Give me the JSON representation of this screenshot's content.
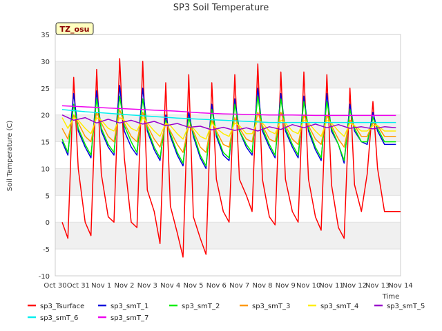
{
  "chart_data": {
    "type": "line",
    "title": "SP3 Soil Temperature",
    "xlabel": "Time",
    "ylabel": "Soil Temperature (C)",
    "ylim": [
      -10,
      35
    ],
    "xlim": [
      0,
      15
    ],
    "yticks": [
      -10,
      -5,
      0,
      5,
      10,
      15,
      20,
      25,
      30,
      35
    ],
    "xtick_labels": [
      "Oct 30",
      "Oct 31",
      "Nov 1",
      "Nov 2",
      "Nov 3",
      "Nov 4",
      "Nov 5",
      "Nov 6",
      "Nov 7",
      "Nov 8",
      "Nov 9",
      "Nov 10",
      "Nov 11",
      "Nov 12",
      "Nov 13",
      "Nov 14"
    ],
    "badge": "TZ_osu",
    "grid": "horizontal bands",
    "legend_position": "bottom",
    "series": [
      {
        "name": "sp3_Tsurface",
        "color": "#ff0000",
        "x": [
          0.3,
          0.55,
          0.8,
          1.0,
          1.3,
          1.55,
          1.8,
          2.0,
          2.3,
          2.55,
          2.8,
          3.0,
          3.3,
          3.55,
          3.8,
          4.0,
          4.3,
          4.55,
          4.8,
          5.0,
          5.3,
          5.55,
          5.8,
          6.0,
          6.3,
          6.55,
          6.8,
          7.0,
          7.3,
          7.55,
          7.8,
          8.0,
          8.3,
          8.55,
          8.8,
          9.0,
          9.3,
          9.55,
          9.8,
          10.0,
          10.3,
          10.55,
          10.8,
          11.0,
          11.3,
          11.55,
          11.8,
          12.0,
          12.3,
          12.55,
          12.8,
          13.0,
          13.3,
          13.55,
          13.8,
          14.0,
          14.3,
          14.55,
          14.8,
          15.0
        ],
        "values": [
          0,
          -3,
          27,
          10,
          0,
          -2.5,
          28.5,
          9,
          1,
          0,
          30.5,
          12,
          0,
          -1,
          30,
          6,
          2,
          -4,
          26,
          3,
          -2,
          -6.5,
          27.5,
          1,
          -3,
          -6,
          26,
          8,
          2,
          0,
          27.5,
          8,
          5,
          2,
          29.5,
          8,
          1,
          -0.5,
          28,
          8,
          2,
          0,
          28,
          8,
          1,
          -1.5,
          27.5,
          7,
          -1,
          -3,
          25,
          7,
          2,
          9,
          22.5,
          10,
          2,
          2,
          2,
          2
        ]
      },
      {
        "name": "sp3_smT_1",
        "color": "#0000dd",
        "x": [
          0.3,
          0.55,
          0.8,
          1.0,
          1.3,
          1.55,
          1.8,
          2.0,
          2.3,
          2.55,
          2.8,
          3.0,
          3.3,
          3.55,
          3.8,
          4.0,
          4.3,
          4.55,
          4.8,
          5.0,
          5.3,
          5.55,
          5.8,
          6.0,
          6.3,
          6.55,
          6.8,
          7.0,
          7.3,
          7.55,
          7.8,
          8.0,
          8.3,
          8.55,
          8.8,
          9.0,
          9.3,
          9.55,
          9.8,
          10.0,
          10.3,
          10.55,
          10.8,
          11.0,
          11.3,
          11.55,
          11.8,
          12.0,
          12.3,
          12.55,
          12.8,
          13.0,
          13.3,
          13.55,
          13.8,
          14.0,
          14.3,
          14.55,
          14.8
        ],
        "values": [
          15,
          12.5,
          24,
          17,
          14,
          12,
          24.5,
          17,
          14,
          12.5,
          25.5,
          17,
          14,
          12.5,
          25,
          17,
          13.5,
          11.5,
          20,
          16,
          12.5,
          10.5,
          20.5,
          16,
          12,
          10,
          22,
          16,
          12.5,
          11.5,
          23,
          17,
          14,
          12.5,
          25,
          17,
          14,
          12,
          24,
          17,
          14,
          12,
          23.5,
          17,
          13.5,
          11.5,
          24,
          17,
          14.5,
          11,
          22,
          17,
          15,
          14.5,
          20.5,
          17,
          14.5,
          14.5,
          14.5
        ]
      },
      {
        "name": "sp3_smT_2",
        "color": "#00ee00",
        "x": [
          0.3,
          0.55,
          0.8,
          1.0,
          1.3,
          1.55,
          1.8,
          2.0,
          2.3,
          2.55,
          2.8,
          3.0,
          3.3,
          3.55,
          3.8,
          4.0,
          4.3,
          4.55,
          4.8,
          5.0,
          5.3,
          5.55,
          5.8,
          6.0,
          6.3,
          6.55,
          6.8,
          7.0,
          7.3,
          7.55,
          7.8,
          8.0,
          8.3,
          8.55,
          8.8,
          9.0,
          9.3,
          9.55,
          9.8,
          10.0,
          10.3,
          10.55,
          10.8,
          11.0,
          11.3,
          11.55,
          11.8,
          12.0,
          12.3,
          12.55,
          12.8,
          13.0,
          13.3,
          13.55,
          13.8,
          14.0,
          14.3,
          14.55,
          14.8
        ],
        "values": [
          15.5,
          13,
          22,
          17.5,
          14.5,
          12.5,
          23,
          17.5,
          14.5,
          13,
          23.5,
          18,
          15,
          13,
          23,
          17.5,
          14,
          12,
          19,
          16.5,
          13,
          11,
          19.5,
          16.5,
          12.5,
          10.5,
          21,
          16.5,
          13,
          12,
          22,
          17,
          14.5,
          13,
          23.5,
          17.5,
          14.5,
          12.5,
          23,
          17.5,
          14.5,
          12.5,
          22.5,
          17.5,
          14,
          12,
          22.5,
          17.5,
          14.5,
          11.5,
          21,
          17.5,
          15,
          15,
          19.5,
          17.5,
          15,
          15,
          15
        ]
      },
      {
        "name": "sp3_smT_3",
        "color": "#ff9900",
        "x": [
          0.3,
          0.55,
          0.8,
          1.0,
          1.3,
          1.55,
          1.8,
          2.0,
          2.3,
          2.55,
          2.8,
          3.0,
          3.3,
          3.55,
          3.8,
          4.0,
          4.3,
          4.55,
          4.8,
          5.0,
          5.3,
          5.55,
          5.8,
          6.0,
          6.3,
          6.55,
          6.8,
          7.0,
          7.3,
          7.55,
          7.8,
          8.0,
          8.3,
          8.55,
          8.8,
          9.0,
          9.3,
          9.55,
          9.8,
          10.0,
          10.3,
          10.55,
          10.8,
          11.0,
          11.3,
          11.55,
          11.8,
          12.0,
          12.3,
          12.55,
          12.8,
          13.0,
          13.3,
          13.55,
          13.8,
          14.0,
          14.3,
          14.55,
          14.8
        ],
        "values": [
          17.5,
          15.5,
          20,
          18.5,
          16,
          15,
          20.5,
          18.5,
          16,
          15,
          21,
          18.5,
          16,
          15,
          20.5,
          18,
          15.5,
          14,
          18.5,
          17,
          14.5,
          13,
          18,
          17,
          14,
          13,
          19,
          17,
          14.5,
          14,
          19.5,
          17.5,
          15.5,
          15,
          20.5,
          18,
          15.5,
          15,
          20.5,
          18,
          15.5,
          14.5,
          20,
          18,
          15.5,
          14.5,
          20,
          18,
          15.5,
          14,
          19,
          18,
          16,
          16,
          18.5,
          18,
          16,
          16,
          16
        ]
      },
      {
        "name": "sp3_smT_4",
        "color": "#ffee00",
        "x": [
          0.3,
          0.55,
          0.8,
          1.0,
          1.3,
          1.55,
          1.8,
          2.0,
          2.3,
          2.55,
          2.8,
          3.0,
          3.3,
          3.55,
          3.8,
          4.0,
          4.3,
          4.55,
          4.8,
          5.0,
          5.3,
          5.55,
          5.8,
          6.0,
          6.3,
          6.55,
          6.8,
          7.0,
          7.3,
          7.55,
          7.8,
          8.0,
          8.3,
          8.55,
          8.8,
          9.0,
          9.3,
          9.55,
          9.8,
          10.0,
          10.3,
          10.55,
          10.8,
          11.0,
          11.3,
          11.55,
          11.8,
          12.0,
          12.3,
          12.55,
          12.8,
          13.0,
          13.3,
          13.55,
          13.8,
          14.0,
          14.3,
          14.55,
          14.8
        ],
        "values": [
          19.5,
          17.5,
          19.5,
          19,
          17.5,
          16.5,
          19.5,
          19,
          17.5,
          17,
          19.5,
          19,
          17.5,
          17,
          19.5,
          18.5,
          17,
          16,
          18.5,
          18,
          16.5,
          15.5,
          18,
          17.5,
          16,
          15.5,
          18.5,
          17.5,
          16.5,
          16,
          18.5,
          18,
          16.5,
          16.5,
          19,
          18.5,
          17,
          16.5,
          19,
          18.5,
          17,
          16.5,
          19,
          18.5,
          17,
          16,
          19,
          18.5,
          17,
          16,
          18.5,
          18,
          17,
          17,
          18,
          18,
          17,
          17,
          17
        ]
      },
      {
        "name": "sp3_smT_5",
        "color": "#9900cc",
        "x": [
          0.3,
          0.8,
          1.3,
          1.8,
          2.3,
          2.8,
          3.3,
          3.8,
          4.3,
          4.8,
          5.3,
          5.8,
          6.3,
          6.8,
          7.3,
          7.8,
          8.3,
          8.8,
          9.3,
          9.8,
          10.3,
          10.8,
          11.3,
          11.8,
          12.3,
          12.8,
          13.3,
          13.8,
          14.3,
          14.8
        ],
        "values": [
          20,
          19,
          19.5,
          18.5,
          19.2,
          18.5,
          19,
          18.3,
          18.8,
          18,
          18.4,
          17.7,
          17.9,
          17.2,
          17.7,
          17.1,
          17.6,
          17,
          17.8,
          17.3,
          18.2,
          17.6,
          18.3,
          17.6,
          18.2,
          17.5,
          17.8,
          17.4,
          17.8,
          17.6
        ]
      },
      {
        "name": "sp3_smT_6",
        "color": "#00eeee",
        "x": [
          0.3,
          1.3,
          2.3,
          3.3,
          4.3,
          5.3,
          6.3,
          7.3,
          8.3,
          9.3,
          10.3,
          11.3,
          12.3,
          13.3,
          14.3,
          14.8
        ],
        "values": [
          21,
          20.6,
          20.3,
          20,
          19.7,
          19.4,
          19.2,
          19,
          18.8,
          18.6,
          18.6,
          18.6,
          18.6,
          18.6,
          18.6,
          18.6
        ]
      },
      {
        "name": "sp3_smT_7",
        "color": "#ee00ee",
        "x": [
          0.3,
          1.3,
          2.3,
          3.3,
          4.3,
          5.3,
          6.3,
          7.3,
          8.3,
          9.3,
          10.3,
          11.3,
          12.3,
          13.3,
          14.3,
          14.8
        ],
        "values": [
          21.7,
          21.5,
          21.3,
          21.1,
          20.9,
          20.7,
          20.4,
          20.2,
          20.1,
          20,
          20,
          19.9,
          19.9,
          19.9,
          19.9,
          19.9
        ]
      }
    ]
  }
}
